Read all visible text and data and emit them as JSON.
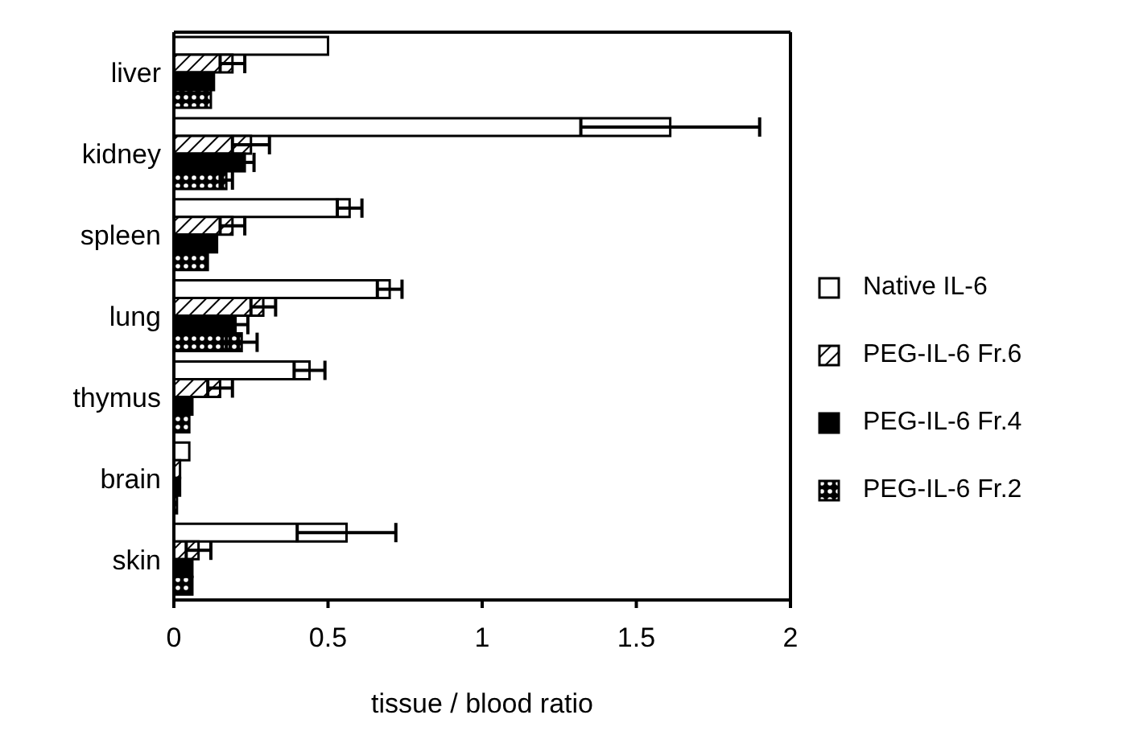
{
  "chart_data": {
    "type": "bar",
    "orientation": "horizontal",
    "xlabel": "tissue / blood ratio",
    "categories": [
      "liver",
      "kidney",
      "spleen",
      "lung",
      "thymus",
      "brain",
      "skin"
    ],
    "series": [
      {
        "name": "Native IL-6",
        "color": "#ffffff",
        "values": [
          0.5,
          1.61,
          0.57,
          0.7,
          0.44,
          0.05,
          0.56
        ],
        "errors": [
          null,
          0.29,
          0.04,
          0.04,
          0.05,
          null,
          0.16
        ]
      },
      {
        "name": "PEG-IL-6 Fr.6",
        "color": "#000000",
        "values": [
          0.19,
          0.25,
          0.19,
          0.29,
          0.15,
          0.02,
          0.08
        ],
        "errors": [
          0.04,
          0.06,
          0.04,
          0.04,
          0.04,
          null,
          0.04
        ]
      },
      {
        "name": "PEG-IL-6 Fr.4",
        "color": "#000000",
        "values": [
          0.13,
          0.23,
          0.14,
          0.2,
          0.06,
          0.02,
          0.06
        ],
        "errors": [
          null,
          0.03,
          null,
          0.04,
          null,
          null,
          null
        ]
      },
      {
        "name": "PEG-IL-6 Fr.2",
        "color": "#000000",
        "values": [
          0.12,
          0.17,
          0.11,
          0.22,
          0.05,
          0.01,
          0.06
        ],
        "errors": [
          null,
          0.02,
          null,
          0.05,
          null,
          null,
          null
        ]
      }
    ],
    "xlim": [
      0,
      2
    ],
    "xticks": [
      0,
      0.5,
      1,
      1.5,
      2
    ],
    "grid": false,
    "legend": "right"
  }
}
